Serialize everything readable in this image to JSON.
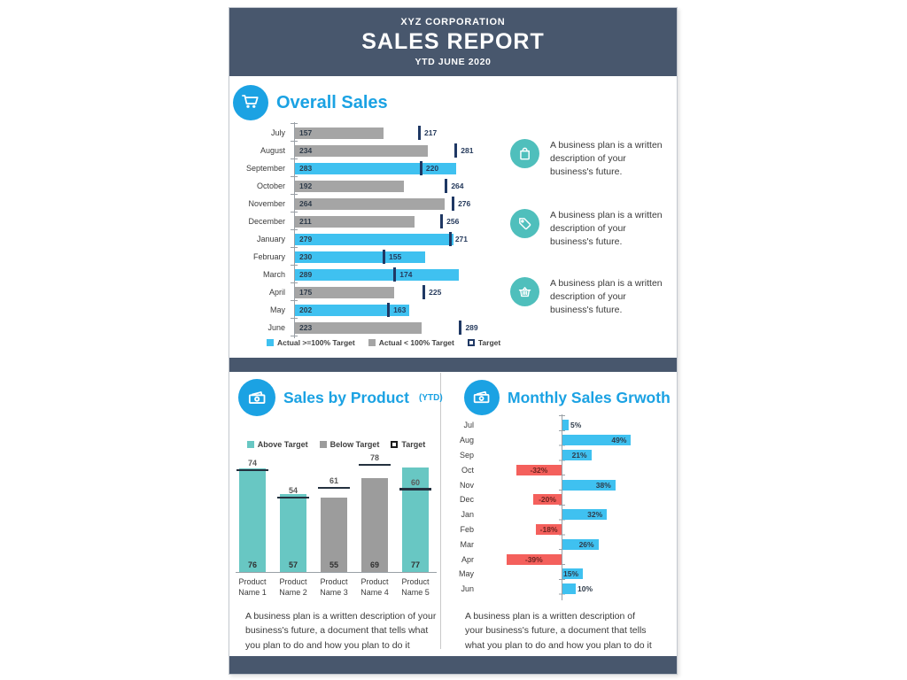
{
  "header": {
    "company": "XYZ CORPORATION",
    "title": "SALES REPORT",
    "subtitle": "YTD JUNE 2020"
  },
  "colors": {
    "header_bg": "#48576d",
    "accent_blue": "#1ba2e3",
    "bar_blue": "#3fc1f0",
    "bar_gray": "#a5a5a5",
    "bar_teal": "#68c7c3",
    "bar_red": "#f4605c",
    "target_navy": "#1f3864",
    "icon_teal": "#4fbfbc"
  },
  "sections": {
    "overall": {
      "title": "Overall Sales",
      "icon": "shopping-cart-icon",
      "legend": [
        {
          "label": "Actual >=100% Target",
          "color": "#3fc1f0",
          "style": "fill"
        },
        {
          "label": "Actual < 100% Target",
          "color": "#a5a5a5",
          "style": "fill"
        },
        {
          "label": "Target",
          "color": "#1f3864",
          "style": "outline"
        }
      ],
      "callouts": [
        {
          "icon": "shopping-bag-icon",
          "text": "A business plan is a written description of your business's future."
        },
        {
          "icon": "price-tag-icon",
          "text": "A business plan is a written description of your business's future."
        },
        {
          "icon": "basket-icon",
          "text": "A business plan is a written description of your business's future."
        }
      ]
    },
    "by_product": {
      "title": "Sales by Product",
      "title_suffix": "(YTD)",
      "icon": "money-icon",
      "legend": [
        {
          "label": "Above Target",
          "color": "#68c7c3",
          "style": "fill"
        },
        {
          "label": "Below Target",
          "color": "#9c9c9c",
          "style": "fill"
        },
        {
          "label": "Target",
          "color": "#1c1c1c",
          "style": "outline"
        }
      ],
      "footnote": "A business plan is a written description of your business's future, a document that tells what you plan to do and how you plan to do it"
    },
    "growth": {
      "title": "Monthly Sales Grwoth",
      "icon": "money-icon",
      "footnote": "A business plan is a written description of your business's future, a document that tells what you plan to do and how you plan to do it"
    }
  },
  "chart_data": [
    {
      "type": "bar",
      "orientation": "horizontal",
      "title": "Overall Sales",
      "categories": [
        "July",
        "August",
        "September",
        "October",
        "November",
        "December",
        "January",
        "February",
        "March",
        "April",
        "May",
        "June"
      ],
      "series": [
        {
          "name": "Actual",
          "values": [
            157,
            234,
            283,
            192,
            264,
            211,
            279,
            230,
            289,
            175,
            202,
            223
          ]
        },
        {
          "name": "Target",
          "values": [
            217,
            281,
            220,
            264,
            276,
            256,
            271,
            155,
            174,
            225,
            163,
            289
          ]
        }
      ],
      "above_target": [
        false,
        false,
        true,
        false,
        false,
        false,
        true,
        true,
        true,
        false,
        true,
        false
      ],
      "xlim": [
        0,
        310
      ],
      "legend": [
        "Actual >=100% Target",
        "Actual < 100% Target",
        "Target"
      ],
      "grid": false
    },
    {
      "type": "bar",
      "orientation": "vertical",
      "title": "Sales by Product (YTD)",
      "categories": [
        "Product Name 1",
        "Product Name 2",
        "Product Name 3",
        "Product Name 4",
        "Product Name 5"
      ],
      "series": [
        {
          "name": "Actual",
          "values": [
            76,
            57,
            55,
            69,
            77
          ]
        },
        {
          "name": "Target",
          "values": [
            74,
            54,
            61,
            78,
            60
          ]
        }
      ],
      "above_target": [
        true,
        true,
        false,
        false,
        true
      ],
      "ylim": [
        0,
        82
      ],
      "legend": [
        "Above Target",
        "Below Target",
        "Target"
      ],
      "grid": false
    },
    {
      "type": "bar",
      "orientation": "horizontal-diverging",
      "title": "Monthly Sales Grwoth",
      "categories": [
        "Jul",
        "Aug",
        "Sep",
        "Oct",
        "Nov",
        "Dec",
        "Jan",
        "Feb",
        "Mar",
        "Apr",
        "May",
        "Jun"
      ],
      "values": [
        5,
        49,
        21,
        -32,
        38,
        -20,
        32,
        -18,
        26,
        -39,
        15,
        10
      ],
      "labels": [
        "5%",
        "49%",
        "21%",
        "-32%",
        "38%",
        "-20%",
        "32%",
        "-18%",
        "26%",
        "-39%",
        "15%",
        "10%"
      ],
      "unit": "%",
      "xlim": [
        -45,
        55
      ],
      "grid": false
    }
  ]
}
